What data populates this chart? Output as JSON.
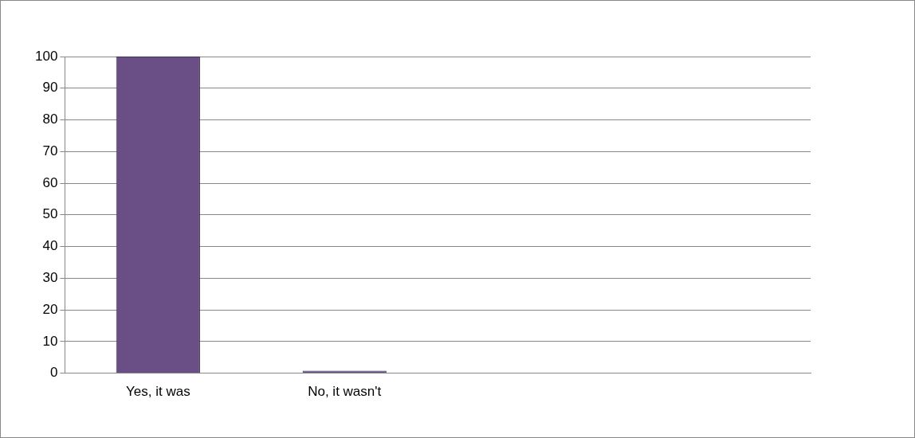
{
  "chart_data": {
    "type": "bar",
    "categories": [
      "Yes, it was",
      "No, it wasn't",
      null,
      null
    ],
    "values": [
      100,
      0,
      null,
      null
    ],
    "color": "#6a4f87",
    "ylim": [
      0,
      100
    ],
    "yticks": [
      0,
      10,
      20,
      30,
      40,
      50,
      60,
      70,
      80,
      90,
      100
    ],
    "grid": "y",
    "legend": false
  }
}
